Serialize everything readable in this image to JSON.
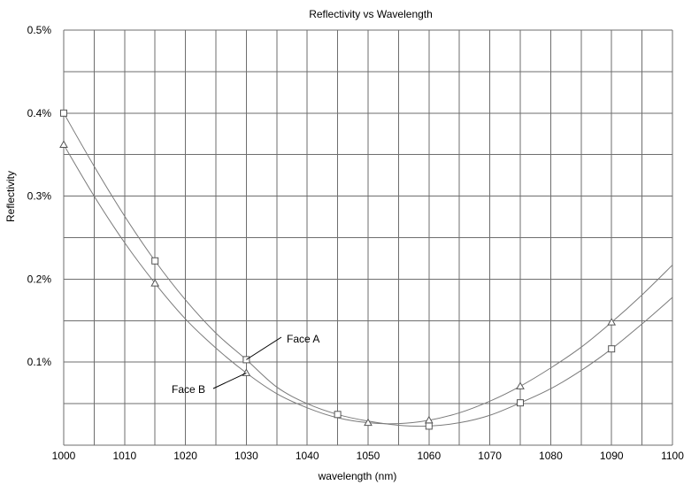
{
  "chart_data": {
    "type": "line",
    "title": "Reflectivity vs Wavelength",
    "xlabel": "wavelength (nm)",
    "ylabel": "Reflectivity",
    "xlim": [
      1000,
      1100
    ],
    "ylim": [
      0,
      0.5
    ],
    "x_ticks": [
      1000,
      1010,
      1020,
      1030,
      1040,
      1050,
      1060,
      1070,
      1080,
      1090,
      1100
    ],
    "y_ticks": [
      {
        "value": 0.1,
        "label": "0.1%"
      },
      {
        "value": 0.2,
        "label": "0.2%"
      },
      {
        "value": 0.3,
        "label": "0.3%"
      },
      {
        "value": 0.4,
        "label": "0.4%"
      },
      {
        "value": 0.5,
        "label": "0.5%"
      }
    ],
    "grid": true,
    "series": [
      {
        "name": "Face A",
        "marker": "square",
        "points": [
          {
            "x": 1000,
            "y": 0.4
          },
          {
            "x": 1015,
            "y": 0.222
          },
          {
            "x": 1030,
            "y": 0.103
          },
          {
            "x": 1045,
            "y": 0.037
          },
          {
            "x": 1060,
            "y": 0.023
          },
          {
            "x": 1075,
            "y": 0.051
          },
          {
            "x": 1090,
            "y": 0.116
          }
        ],
        "curve": [
          [
            1000,
            0.4
          ],
          [
            1005,
            0.336
          ],
          [
            1010,
            0.276
          ],
          [
            1015,
            0.222
          ],
          [
            1020,
            0.175
          ],
          [
            1025,
            0.135
          ],
          [
            1030,
            0.103
          ],
          [
            1035,
            0.07
          ],
          [
            1040,
            0.05
          ],
          [
            1045,
            0.037
          ],
          [
            1050,
            0.029
          ],
          [
            1055,
            0.024
          ],
          [
            1060,
            0.023
          ],
          [
            1065,
            0.027
          ],
          [
            1070,
            0.036
          ],
          [
            1075,
            0.051
          ],
          [
            1080,
            0.068
          ],
          [
            1085,
            0.09
          ],
          [
            1090,
            0.116
          ],
          [
            1095,
            0.146
          ],
          [
            1100,
            0.178
          ]
        ]
      },
      {
        "name": "Face B",
        "marker": "triangle",
        "points": [
          {
            "x": 1000,
            "y": 0.362
          },
          {
            "x": 1015,
            "y": 0.195
          },
          {
            "x": 1030,
            "y": 0.087
          },
          {
            "x": 1050,
            "y": 0.027
          },
          {
            "x": 1060,
            "y": 0.03
          },
          {
            "x": 1075,
            "y": 0.071
          },
          {
            "x": 1090,
            "y": 0.148
          }
        ],
        "curve": [
          [
            1000,
            0.362
          ],
          [
            1005,
            0.3
          ],
          [
            1010,
            0.244
          ],
          [
            1015,
            0.195
          ],
          [
            1020,
            0.152
          ],
          [
            1025,
            0.117
          ],
          [
            1030,
            0.087
          ],
          [
            1035,
            0.062
          ],
          [
            1040,
            0.045
          ],
          [
            1045,
            0.033
          ],
          [
            1050,
            0.027
          ],
          [
            1055,
            0.026
          ],
          [
            1060,
            0.03
          ],
          [
            1065,
            0.039
          ],
          [
            1070,
            0.053
          ],
          [
            1075,
            0.071
          ],
          [
            1080,
            0.093
          ],
          [
            1085,
            0.118
          ],
          [
            1090,
            0.148
          ],
          [
            1095,
            0.181
          ],
          [
            1100,
            0.217
          ]
        ]
      }
    ],
    "annotations": [
      {
        "text": "Face A",
        "series": "Face A",
        "at_x": 1030
      },
      {
        "text": "Face B",
        "series": "Face B",
        "at_x": 1030
      }
    ],
    "style": {
      "grid_color": "#6e6e6e",
      "line_color": "#7a7a7a",
      "marker_color": "#555555",
      "background": "#ffffff"
    }
  }
}
